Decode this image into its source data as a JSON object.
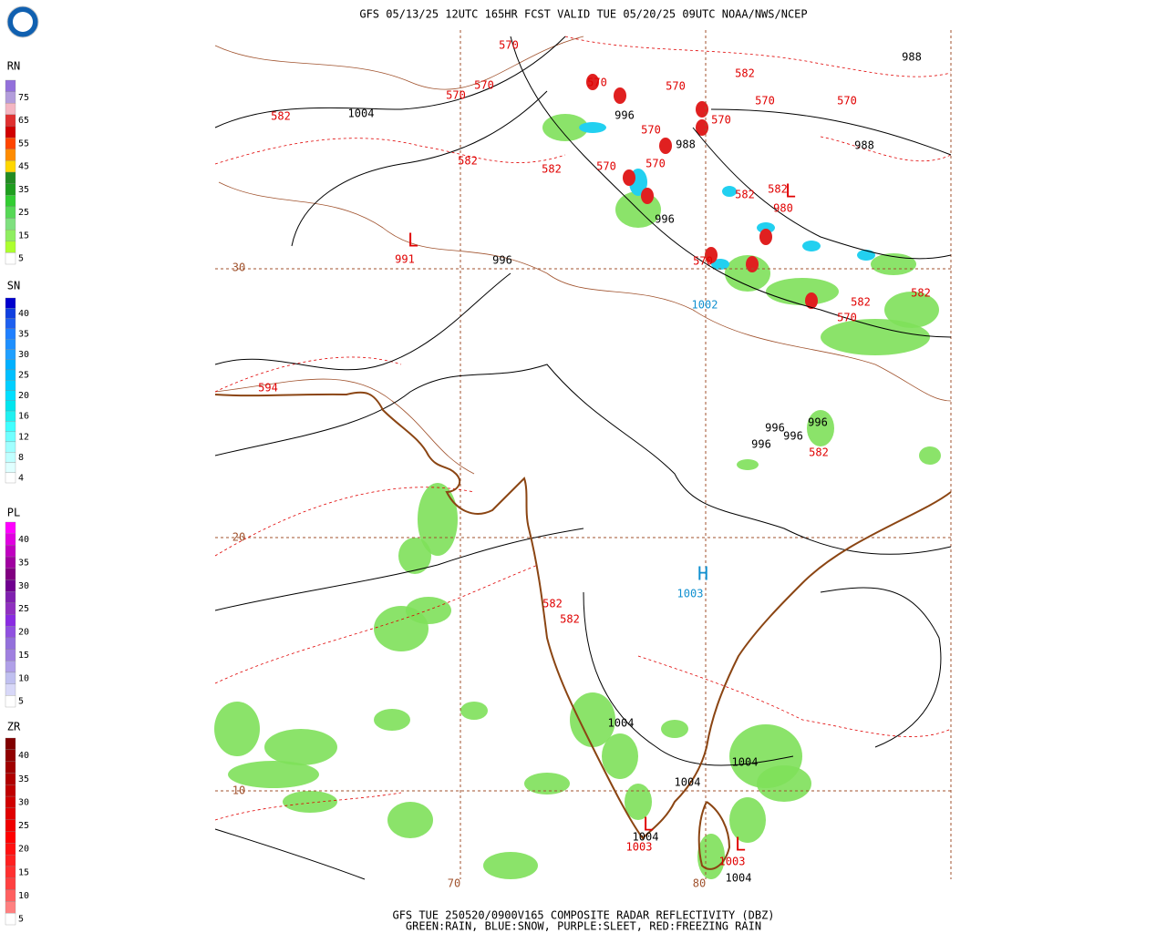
{
  "header": {
    "title": "GFS 05/13/25 12UTC 165HR FCST VALID TUE 05/20/25 09UTC NOAA/NWS/NCEP"
  },
  "legend": [
    {
      "name": "RN",
      "labels": [
        75,
        65,
        55,
        45,
        35,
        25,
        15,
        5
      ],
      "colors": [
        "#9370db",
        "#b39ddb",
        "#f4b6c2",
        "#e03030",
        "#d00000",
        "#ff4500",
        "#ff8c00",
        "#ffd700",
        "#228b22",
        "#1e9e1e",
        "#32cd32",
        "#56d856",
        "#7fe07f",
        "#90ee60",
        "#adff2f",
        "#ffffff"
      ]
    },
    {
      "name": "SN",
      "labels": [
        40,
        35,
        30,
        25,
        20,
        16,
        12,
        8,
        4
      ],
      "colors": [
        "#0000cd",
        "#1040e0",
        "#1e60f0",
        "#2080ff",
        "#1e90ff",
        "#20a0ff",
        "#00b0ff",
        "#00c0ff",
        "#00cfff",
        "#00dfff",
        "#00e5ee",
        "#20f0f0",
        "#40ffff",
        "#70ffff",
        "#a0ffff",
        "#c0ffff",
        "#e0ffff",
        "#ffffff"
      ]
    },
    {
      "name": "PL",
      "labels": [
        40,
        35,
        30,
        25,
        20,
        15,
        10,
        5
      ],
      "colors": [
        "#ff00ff",
        "#e000e0",
        "#c000c0",
        "#a000a0",
        "#800080",
        "#700090",
        "#8020b0",
        "#9030c0",
        "#8a2be2",
        "#9050e0",
        "#9370db",
        "#a080e0",
        "#b0a0e8",
        "#c0c0f0",
        "#d8d8f8",
        "#ffffff"
      ]
    },
    {
      "name": "ZR",
      "labels": [
        40,
        35,
        30,
        25,
        20,
        15,
        10,
        5
      ],
      "colors": [
        "#800000",
        "#900000",
        "#a00000",
        "#b00000",
        "#c00000",
        "#d00000",
        "#e00000",
        "#f00000",
        "#ff0000",
        "#ff1010",
        "#ff2020",
        "#ff3030",
        "#ff4040",
        "#ff6060",
        "#ff8080",
        "#ffffff"
      ]
    }
  ],
  "grid_labels": [
    "30",
    "20",
    "10",
    "70",
    "80"
  ],
  "map_labels": [
    {
      "text": "570",
      "color": "#e00000"
    },
    {
      "text": "570",
      "color": "#e00000"
    },
    {
      "text": "570",
      "color": "#e00000"
    },
    {
      "text": "570",
      "color": "#e00000"
    },
    {
      "text": "570",
      "color": "#e00000"
    },
    {
      "text": "570",
      "color": "#e00000"
    },
    {
      "text": "570",
      "color": "#e00000"
    },
    {
      "text": "570",
      "color": "#e00000"
    },
    {
      "text": "570",
      "color": "#e00000"
    },
    {
      "text": "570",
      "color": "#e00000"
    },
    {
      "text": "570",
      "color": "#e00000"
    },
    {
      "text": "570",
      "color": "#e00000"
    },
    {
      "text": "570",
      "color": "#e00000"
    },
    {
      "text": "582",
      "color": "#e00000"
    },
    {
      "text": "582",
      "color": "#e00000"
    },
    {
      "text": "582",
      "color": "#e00000"
    },
    {
      "text": "582",
      "color": "#e00000"
    },
    {
      "text": "582",
      "color": "#e00000"
    },
    {
      "text": "582",
      "color": "#e00000"
    },
    {
      "text": "582",
      "color": "#e00000"
    },
    {
      "text": "582",
      "color": "#e00000"
    },
    {
      "text": "582",
      "color": "#e00000"
    },
    {
      "text": "582",
      "color": "#e00000"
    },
    {
      "text": "582",
      "color": "#e00000"
    },
    {
      "text": "594",
      "color": "#e00000"
    },
    {
      "text": "1004",
      "color": "#000000"
    },
    {
      "text": "996",
      "color": "#000000"
    },
    {
      "text": "988",
      "color": "#000000"
    },
    {
      "text": "988",
      "color": "#000000"
    },
    {
      "text": "988",
      "color": "#000000"
    },
    {
      "text": "996",
      "color": "#000000"
    },
    {
      "text": "996",
      "color": "#000000"
    },
    {
      "text": "996",
      "color": "#000000"
    },
    {
      "text": "996",
      "color": "#000000"
    },
    {
      "text": "996",
      "color": "#000000"
    },
    {
      "text": "996",
      "color": "#000000"
    },
    {
      "text": "1004",
      "color": "#000000"
    },
    {
      "text": "1004",
      "color": "#000000"
    },
    {
      "text": "1004",
      "color": "#000000"
    },
    {
      "text": "1004",
      "color": "#000000"
    },
    {
      "text": "1004",
      "color": "#000000"
    },
    {
      "text": "L",
      "color": "#e00000"
    },
    {
      "text": "991",
      "color": "#e00000"
    },
    {
      "text": "L",
      "color": "#e00000"
    },
    {
      "text": "980",
      "color": "#e00000"
    },
    {
      "text": "L",
      "color": "#e00000"
    },
    {
      "text": "1003",
      "color": "#e00000"
    },
    {
      "text": "L",
      "color": "#e00000"
    },
    {
      "text": "1003",
      "color": "#e00000"
    },
    {
      "text": "H",
      "color": "#1090d0"
    },
    {
      "text": "1003",
      "color": "#1090d0"
    },
    {
      "text": "1002",
      "color": "#1090d0"
    }
  ],
  "footer": {
    "line1": "GFS TUE 250520/0900V165 COMPOSITE RADAR REFLECTIVITY (DBZ)",
    "line2": "GREEN:RAIN, BLUE:SNOW, PURPLE:SLEET, RED:FREEZING RAIN"
  }
}
